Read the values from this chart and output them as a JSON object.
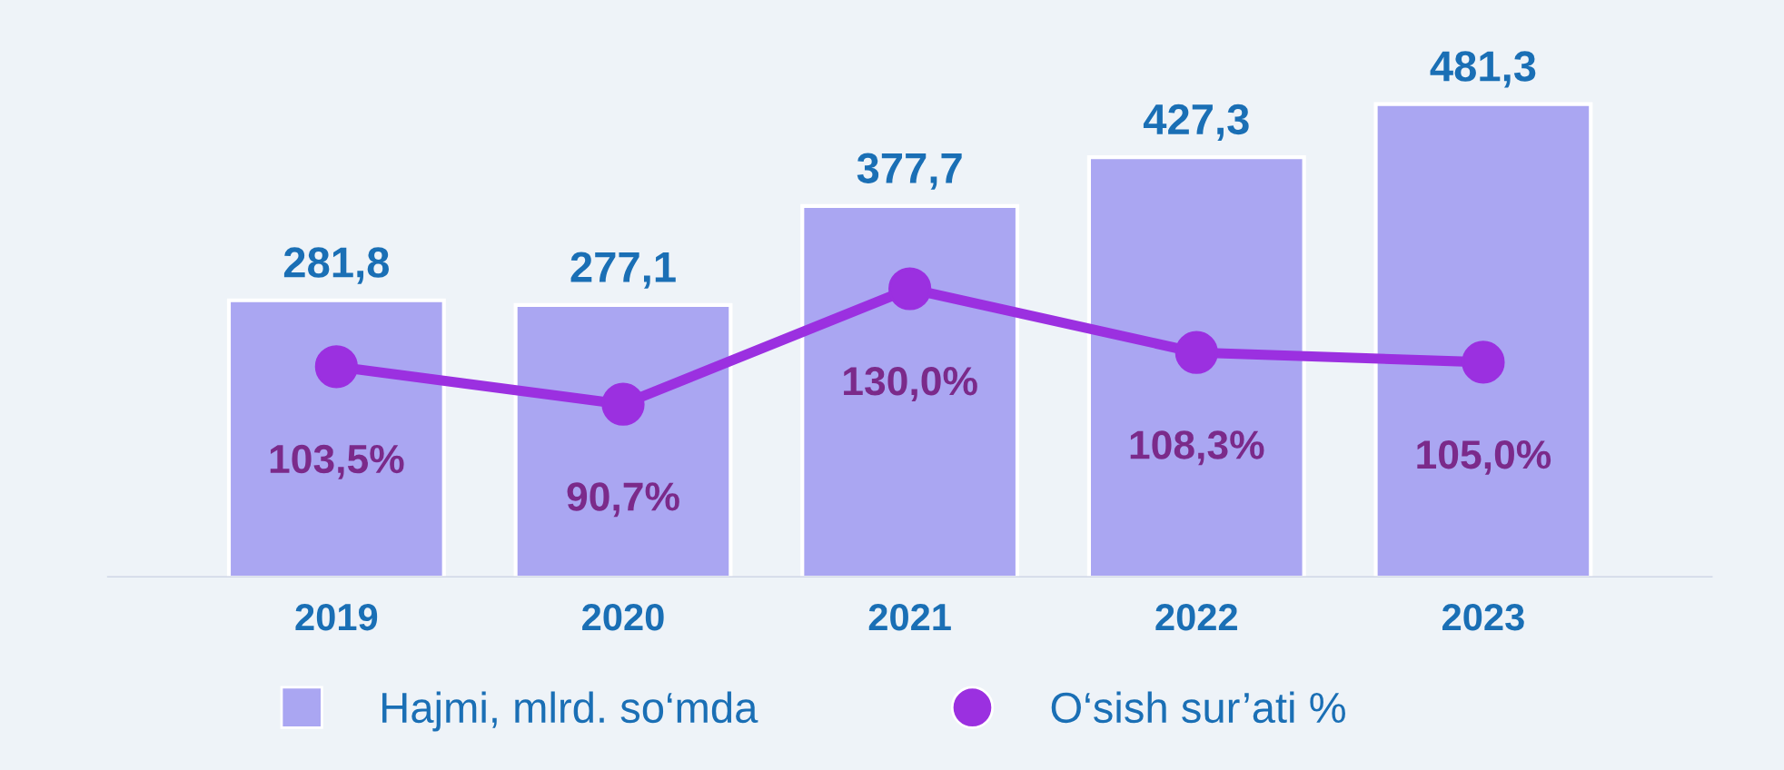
{
  "chart_data": {
    "type": "bar",
    "categories": [
      "2019",
      "2020",
      "2021",
      "2022",
      "2023"
    ],
    "legend": "bottom",
    "grid": false,
    "series": [
      {
        "name": "Hajmi, mlrd. so‘mda",
        "type": "bar",
        "color": "#aaa6f2",
        "values": [
          281.8,
          277.1,
          377.7,
          427.3,
          481.3
        ],
        "value_labels": [
          "281,8",
          "277,1",
          "377,7",
          "427,3",
          "481,3"
        ]
      },
      {
        "name": "O‘sish sur’ati %",
        "type": "line",
        "axis": "y2",
        "color": "#9b30e0",
        "marker": "circle",
        "values": [
          103.5,
          90.7,
          130.0,
          108.3,
          105.0
        ],
        "value_labels": [
          "103,5%",
          "90,7%",
          "130,0%",
          "108,3%",
          "105,0%"
        ]
      }
    ]
  }
}
